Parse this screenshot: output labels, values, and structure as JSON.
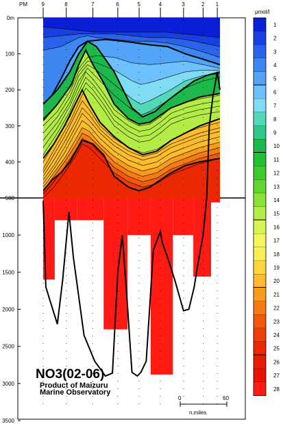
{
  "chart_data": {
    "type": "heatmap",
    "title": "NO3(02-06)",
    "subtitle_lines": [
      "Product of Maizuru",
      "Marine Observatory"
    ],
    "top_left_label": "PM",
    "station_labels": [
      "9",
      "8",
      "7",
      "6",
      "5",
      "4",
      "3",
      "2",
      "1"
    ],
    "y_tick_labels": [
      "0m",
      "100",
      "200",
      "300",
      "400",
      "500",
      "1000",
      "1500",
      "2000",
      "2500",
      "3000",
      "3500"
    ],
    "y_upper": {
      "depths": [
        0,
        100,
        200,
        300,
        400,
        500
      ],
      "range": [
        0,
        500
      ]
    },
    "y_lower": {
      "depths": [
        500,
        1000,
        1500,
        2000,
        2500,
        3000,
        3500
      ],
      "range": [
        500,
        3500
      ]
    },
    "colorbar": {
      "unit_label": "μmol/l",
      "levels": [
        1,
        2,
        3,
        4,
        5,
        6,
        7,
        8,
        9,
        10,
        11,
        12,
        13,
        14,
        15,
        16,
        17,
        18,
        19,
        20,
        21,
        22,
        23,
        24,
        25,
        26,
        27,
        28
      ],
      "bold_levels": [
        5,
        10,
        15,
        20,
        25
      ],
      "colors": [
        "#0a1fd6",
        "#1840e0",
        "#2a63ea",
        "#3c86f2",
        "#52a4f8",
        "#6cc0fc",
        "#7fdcf4",
        "#54d8b8",
        "#2ec88a",
        "#1cb84c",
        "#22c032",
        "#3dcb2c",
        "#5fd730",
        "#8ae23a",
        "#b2ec44",
        "#d6f454",
        "#f2f85c",
        "#fbee4e",
        "#fdd63c",
        "#fcbc2c",
        "#f99c1c",
        "#f57c12",
        "#f05a0a",
        "#ec3e06",
        "#ea2804",
        "#e81a02",
        "#e81202",
        "#ff1a14"
      ]
    },
    "scale_bar": {
      "start_label": "0",
      "end_label": "60",
      "unit": "n.miles"
    },
    "station_positions_nm": [
      0,
      13,
      28,
      42,
      54,
      66,
      79,
      90,
      98
    ],
    "bottom_profile": {
      "x_nm": [
        0,
        1.5,
        6,
        8,
        11,
        14.5,
        17,
        23,
        29,
        35,
        39,
        42,
        44.5,
        47,
        50,
        53,
        55,
        58,
        62,
        66,
        67,
        70,
        74,
        79,
        82,
        85,
        87,
        90,
        92,
        93.5,
        95.5,
        98,
        99.5
      ],
      "depth_m": [
        540,
        1700,
        2050,
        2200,
        1600,
        690,
        1300,
        2350,
        2700,
        2900,
        2860,
        1500,
        1000,
        1800,
        2850,
        2900,
        2850,
        2700,
        1200,
        950,
        1100,
        1300,
        1600,
        2020,
        2000,
        1700,
        1400,
        1000,
        500,
        300,
        220,
        150,
        200
      ]
    },
    "section_columns": {
      "x_nm": [
        0,
        6.5,
        19,
        34,
        47.5,
        60.5,
        73,
        84.5,
        94.5,
        99.5
      ],
      "max_depth_m": [
        1600,
        800,
        800,
        2270,
        1000,
        2880,
        1000,
        1560,
        560,
        200
      ]
    },
    "isolines": [
      {
        "level": 5,
        "bold": true,
        "x_nm": [
          0,
          5,
          10,
          15,
          20,
          25,
          35,
          45,
          60,
          70,
          80,
          90,
          99.5
        ],
        "depth_m": [
          240,
          215,
          170,
          120,
          80,
          65,
          60,
          65,
          75,
          80,
          100,
          115,
          130
        ]
      },
      {
        "level": 10,
        "bold": true,
        "x_nm": [
          0,
          8,
          15,
          20,
          25,
          30,
          40,
          50,
          56,
          63,
          70,
          78,
          85,
          92,
          99.5
        ],
        "depth_m": [
          240,
          200,
          150,
          100,
          65,
          80,
          150,
          250,
          275,
          260,
          230,
          200,
          175,
          160,
          150
        ]
      },
      {
        "level": 15,
        "bold": true,
        "x_nm": [
          0,
          8,
          16,
          20,
          24,
          28,
          34,
          40,
          48,
          54,
          60,
          66,
          72,
          80,
          88,
          99.5
        ],
        "depth_m": [
          285,
          240,
          185,
          130,
          90,
          130,
          180,
          240,
          280,
          295,
          290,
          270,
          250,
          235,
          220,
          210
        ]
      },
      {
        "level": 20,
        "bold": true,
        "x_nm": [
          0,
          6,
          12,
          18,
          22,
          26,
          32,
          40,
          48,
          56,
          64,
          72,
          80,
          88,
          99.5
        ],
        "depth_m": [
          390,
          350,
          300,
          240,
          200,
          240,
          290,
          330,
          360,
          380,
          370,
          340,
          320,
          300,
          280
        ]
      },
      {
        "level": 25,
        "bold": true,
        "x_nm": [
          0,
          5,
          10,
          15,
          22,
          28,
          34,
          40,
          48,
          54,
          60,
          66,
          72,
          80,
          88,
          99.5
        ],
        "depth_m": [
          480,
          450,
          430,
          400,
          340,
          350,
          380,
          440,
          470,
          480,
          470,
          450,
          430,
          410,
          400,
          390
        ]
      }
    ],
    "level_boundaries": [
      {
        "level": 2,
        "x_nm": [
          0,
          10,
          20,
          30,
          40,
          50,
          60,
          70,
          80,
          90,
          99.5
        ],
        "depth_m": [
          25,
          30,
          35,
          40,
          40,
          40,
          40,
          40,
          45,
          50,
          55
        ]
      },
      {
        "level": 3,
        "x_nm": [
          0,
          10,
          20,
          30,
          40,
          50,
          60,
          70,
          80,
          90,
          99.5
        ],
        "depth_m": [
          55,
          50,
          45,
          45,
          45,
          50,
          55,
          55,
          60,
          70,
          80
        ]
      },
      {
        "level": 4,
        "x_nm": [
          0,
          10,
          20,
          25,
          30,
          40,
          50,
          60,
          70,
          80,
          90,
          99.5
        ],
        "depth_m": [
          90,
          80,
          55,
          50,
          55,
          60,
          65,
          65,
          70,
          80,
          95,
          110
        ]
      },
      {
        "level": 6,
        "x_nm": [
          0,
          8,
          15,
          20,
          25,
          30,
          40,
          50,
          60,
          70,
          80,
          90,
          99.5
        ],
        "depth_m": [
          280,
          240,
          190,
          140,
          110,
          105,
          110,
          125,
          130,
          125,
          120,
          130,
          140
        ]
      },
      {
        "level": 7,
        "x_nm": [
          0,
          8,
          15,
          20,
          25,
          30,
          40,
          50,
          55,
          60,
          70,
          80,
          90,
          99.5
        ],
        "depth_m": [
          300,
          260,
          205,
          150,
          120,
          125,
          145,
          175,
          185,
          180,
          165,
          150,
          145,
          145
        ]
      },
      {
        "level": 8,
        "x_nm": [
          0,
          8,
          15,
          20,
          25,
          30,
          40,
          50,
          55,
          60,
          70,
          80,
          90,
          99.5
        ],
        "depth_m": [
          320,
          275,
          220,
          160,
          130,
          145,
          185,
          225,
          240,
          230,
          205,
          175,
          160,
          155
        ]
      },
      {
        "level": 9,
        "x_nm": [
          0,
          8,
          15,
          20,
          25,
          30,
          40,
          50,
          55,
          60,
          70,
          80,
          90,
          99.5
        ],
        "depth_m": [
          340,
          290,
          235,
          175,
          140,
          165,
          215,
          255,
          270,
          260,
          230,
          195,
          175,
          165
        ]
      },
      {
        "level": 11,
        "x_nm": [
          0,
          8,
          15,
          20,
          24,
          28,
          34,
          40,
          48,
          54,
          60,
          66,
          72,
          80,
          88,
          99.5
        ],
        "depth_m": [
          360,
          305,
          245,
          190,
          150,
          170,
          210,
          255,
          285,
          300,
          295,
          275,
          250,
          235,
          225,
          215
        ]
      },
      {
        "level": 12,
        "x_nm": [
          0,
          8,
          15,
          20,
          24,
          28,
          34,
          40,
          48,
          54,
          60,
          66,
          72,
          80,
          88,
          99.5
        ],
        "depth_m": [
          380,
          320,
          260,
          205,
          165,
          185,
          225,
          270,
          300,
          315,
          310,
          290,
          265,
          250,
          240,
          230
        ]
      },
      {
        "level": 13,
        "x_nm": [
          0,
          8,
          15,
          20,
          24,
          28,
          34,
          40,
          48,
          54,
          60,
          66,
          72,
          80,
          88,
          99.5
        ],
        "depth_m": [
          400,
          335,
          275,
          220,
          180,
          200,
          240,
          285,
          315,
          330,
          325,
          305,
          280,
          265,
          255,
          245
        ]
      },
      {
        "level": 14,
        "x_nm": [
          0,
          8,
          15,
          20,
          24,
          28,
          34,
          40,
          48,
          54,
          60,
          66,
          72,
          80,
          88,
          99.5
        ],
        "depth_m": [
          420,
          350,
          290,
          235,
          195,
          215,
          255,
          300,
          330,
          345,
          340,
          320,
          295,
          280,
          270,
          260
        ]
      },
      {
        "level": 16,
        "x_nm": [
          0,
          6,
          12,
          18,
          22,
          26,
          32,
          40,
          48,
          56,
          64,
          72,
          80,
          88,
          99.5
        ],
        "depth_m": [
          430,
          380,
          330,
          270,
          230,
          255,
          300,
          335,
          360,
          375,
          365,
          340,
          320,
          305,
          290
        ]
      },
      {
        "level": 17,
        "x_nm": [
          0,
          6,
          12,
          18,
          22,
          26,
          32,
          40,
          48,
          56,
          64,
          72,
          80,
          88,
          99.5
        ],
        "depth_m": [
          440,
          395,
          345,
          290,
          250,
          270,
          310,
          345,
          370,
          385,
          375,
          350,
          335,
          320,
          305
        ]
      },
      {
        "level": 18,
        "x_nm": [
          0,
          6,
          12,
          18,
          22,
          26,
          32,
          40,
          48,
          56,
          64,
          72,
          80,
          88,
          99.5
        ],
        "depth_m": [
          450,
          410,
          360,
          305,
          265,
          285,
          320,
          355,
          380,
          395,
          385,
          360,
          345,
          330,
          315
        ]
      },
      {
        "level": 19,
        "x_nm": [
          0,
          6,
          12,
          18,
          22,
          26,
          32,
          40,
          48,
          56,
          64,
          72,
          80,
          88,
          99.5
        ],
        "depth_m": [
          460,
          420,
          375,
          320,
          285,
          300,
          335,
          370,
          395,
          410,
          400,
          375,
          360,
          345,
          330
        ]
      },
      {
        "level": 21,
        "x_nm": [
          0,
          6,
          12,
          18,
          22,
          26,
          32,
          40,
          48,
          56,
          64,
          72,
          80,
          88,
          99.5
        ],
        "depth_m": [
          470,
          430,
          390,
          340,
          305,
          315,
          350,
          385,
          410,
          425,
          415,
          390,
          375,
          360,
          345
        ]
      },
      {
        "level": 22,
        "x_nm": [
          0,
          6,
          12,
          18,
          22,
          26,
          32,
          40,
          48,
          56,
          64,
          72,
          80,
          88,
          99.5
        ],
        "depth_m": [
          480,
          440,
          400,
          355,
          320,
          330,
          360,
          400,
          425,
          440,
          430,
          405,
          390,
          375,
          360
        ]
      },
      {
        "level": 23,
        "x_nm": [
          0,
          6,
          12,
          18,
          22,
          26,
          32,
          40,
          48,
          56,
          64,
          72,
          80,
          88,
          99.5
        ],
        "depth_m": [
          490,
          455,
          415,
          370,
          335,
          345,
          375,
          415,
          440,
          455,
          445,
          420,
          405,
          390,
          375
        ]
      },
      {
        "level": 24,
        "x_nm": [
          0,
          6,
          12,
          18,
          22,
          26,
          32,
          40,
          48,
          56,
          64,
          72,
          80,
          88,
          99.5
        ],
        "depth_m": [
          500,
          470,
          430,
          385,
          350,
          360,
          390,
          430,
          455,
          470,
          460,
          435,
          420,
          405,
          390
        ]
      }
    ]
  }
}
